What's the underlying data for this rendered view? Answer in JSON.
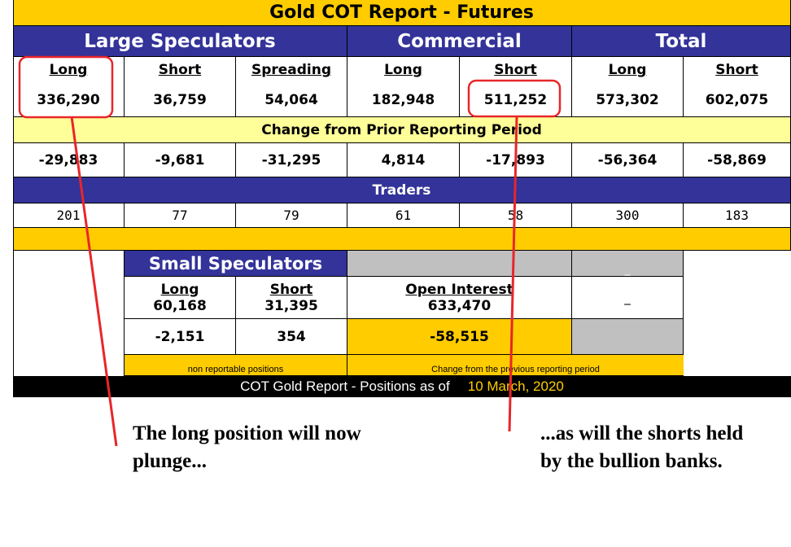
{
  "title": "Gold COT Report - Futures",
  "groups": {
    "large_speculators": "Large Speculators",
    "commercial": "Commercial",
    "total": "Total"
  },
  "columns": [
    "Long",
    "Short",
    "Spreading",
    "Long",
    "Short",
    "Long",
    "Short"
  ],
  "positions": [
    "336,290",
    "36,759",
    "54,064",
    "182,948",
    "511,252",
    "573,302",
    "602,075"
  ],
  "change_header": "Change from Prior Reporting Period",
  "changes": [
    "-29,883",
    "-9,681",
    "-31,295",
    "4,814",
    "-17,893",
    "-56,364",
    "-58,869"
  ],
  "traders_header": "Traders",
  "traders": [
    "201",
    "77",
    "79",
    "61",
    "58",
    "300",
    "183"
  ],
  "small_speculators": {
    "title": "Small Speculators",
    "long_label": "Long",
    "long_value": "60,168",
    "short_label": "Short",
    "short_value": "31,395",
    "long_change": "-2,151",
    "short_change": "354",
    "footnote": "non reportable positions"
  },
  "open_interest": {
    "label": "Open Interest",
    "value": "633,470",
    "change": "-58,515",
    "footnote": "Change from the previous reporting period"
  },
  "gray_dash_1": "_",
  "gray_dash_2": "_",
  "footer": {
    "prefix": "COT Gold Report - Positions as of",
    "date": "10 March, 2020"
  },
  "annotations": {
    "left_caption": "The long position will now plunge...",
    "right_caption": "...as will the shorts held by the bullion banks."
  },
  "colors": {
    "navy": "#333399",
    "gold": "#ffcc00",
    "pale_yellow": "#ffff99",
    "highlight_red": "#e8262a"
  }
}
